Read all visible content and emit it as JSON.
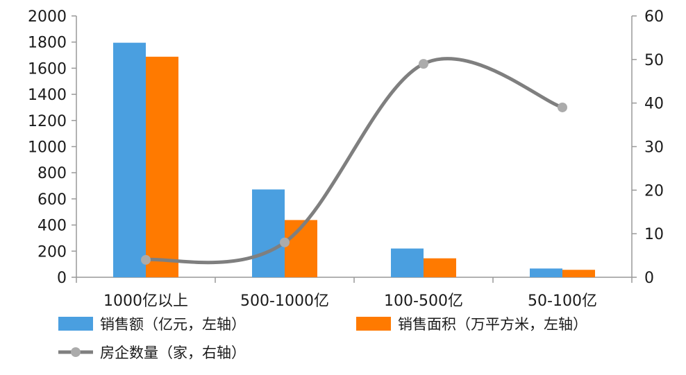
{
  "chart_data": {
    "type": "bar",
    "categories": [
      "1000亿以上",
      "500-1000亿",
      "100-500亿",
      "50-100亿"
    ],
    "series": [
      {
        "name": "销售额（亿元，左轴）",
        "type": "bar",
        "axis": "left",
        "color": "#4A9FE0",
        "values": [
          1795,
          672,
          220,
          67
        ]
      },
      {
        "name": "销售面积（万平方米，左轴）",
        "type": "bar",
        "axis": "left",
        "color": "#FF7A00",
        "values": [
          1688,
          438,
          145,
          57
        ]
      },
      {
        "name": "房企数量（家，右轴）",
        "type": "line",
        "axis": "right",
        "color": "#7F7F7F",
        "marker_color": "#ABABAB",
        "smooth": true,
        "values": [
          4,
          8,
          49,
          39
        ]
      }
    ],
    "left_axis": {
      "ylim": [
        0,
        2000
      ],
      "ticks": [
        "0",
        "200",
        "400",
        "600",
        "800",
        "1000",
        "1200",
        "1400",
        "1600",
        "1800",
        "2000"
      ]
    },
    "right_axis": {
      "ylim": [
        0,
        60
      ],
      "ticks": [
        "0",
        "10",
        "20",
        "30",
        "40",
        "50",
        "60"
      ]
    },
    "grid": false,
    "legend_position": "bottom"
  }
}
